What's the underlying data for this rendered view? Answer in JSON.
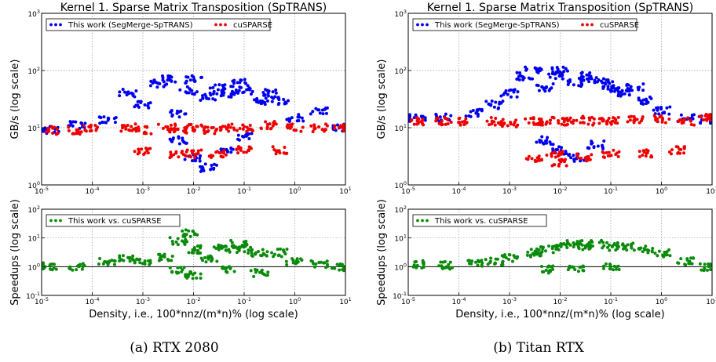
{
  "colors": {
    "segmerge": "#0000ee",
    "cusparse": "#ee0000",
    "speedup": "#0a8a0a",
    "grid": "#9a9a9a"
  },
  "chart_data": [
    {
      "type": "scatter",
      "panel": "top-left",
      "title": "Kernel 1. Sparse Matrix Transposition (SpTRANS)",
      "xlabel": "",
      "ylabel": "GB/s (log scale)",
      "xscale": "log",
      "yscale": "log",
      "xlim": [
        1e-05,
        10
      ],
      "ylim": [
        1,
        1000
      ],
      "xticks": [
        "10-5",
        "10-4",
        "10-3",
        "10-2",
        "10-1",
        "100",
        "101"
      ],
      "yticks": [
        "100",
        "101",
        "102",
        "103"
      ],
      "grid": true,
      "legend": "top",
      "series": [
        {
          "name": "This work (SegMerge-SpTRANS)",
          "color": "#0000ee",
          "points": [
            [
              1.5e-05,
              9
            ],
            [
              5e-05,
              11
            ],
            [
              0.0002,
              14
            ],
            [
              0.0005,
              40
            ],
            [
              0.001,
              25
            ],
            [
              0.002,
              60
            ],
            [
              0.003,
              70
            ],
            [
              0.005,
              18
            ],
            [
              0.008,
              45
            ],
            [
              0.01,
              70
            ],
            [
              0.02,
              35
            ],
            [
              0.03,
              50
            ],
            [
              0.05,
              40
            ],
            [
              0.08,
              60
            ],
            [
              0.1,
              45
            ],
            [
              0.2,
              30
            ],
            [
              0.3,
              40
            ],
            [
              0.5,
              30
            ],
            [
              1,
              15
            ],
            [
              3,
              20
            ],
            [
              0.005,
              6
            ],
            [
              0.01,
              3
            ],
            [
              0.02,
              2
            ],
            [
              0.05,
              4
            ],
            [
              0.1,
              7
            ],
            [
              8,
              10
            ]
          ]
        },
        {
          "name": "cuSPARSE",
          "color": "#ee0000",
          "points": [
            [
              1.5e-05,
              9
            ],
            [
              5e-05,
              9
            ],
            [
              0.0001,
              10
            ],
            [
              0.0005,
              10
            ],
            [
              0.001,
              9
            ],
            [
              0.003,
              10
            ],
            [
              0.005,
              9
            ],
            [
              0.01,
              10
            ],
            [
              0.02,
              9
            ],
            [
              0.05,
              10
            ],
            [
              0.1,
              10
            ],
            [
              0.3,
              11
            ],
            [
              1,
              10
            ],
            [
              3,
              10
            ],
            [
              8,
              10
            ],
            [
              0.001,
              4
            ],
            [
              0.005,
              3.5
            ],
            [
              0.01,
              3.5
            ],
            [
              0.03,
              3.5
            ],
            [
              0.1,
              4
            ],
            [
              0.5,
              4
            ]
          ]
        }
      ]
    },
    {
      "type": "scatter",
      "panel": "bottom-left",
      "title": "",
      "xlabel": "Density, i.e., 100*nnz/(m*n)% (log scale)",
      "ylabel": "Speedups (log scale)",
      "xscale": "log",
      "yscale": "log",
      "xlim": [
        1e-05,
        10
      ],
      "ylim": [
        0.1,
        100
      ],
      "xticks": [
        "10-5",
        "10-4",
        "10-3",
        "10-2",
        "10-1",
        "100",
        "101"
      ],
      "yticks": [
        "10-1",
        "100",
        "101",
        "102"
      ],
      "grid": true,
      "legend": "top-left",
      "reference_line": 1,
      "series": [
        {
          "name": "This work vs. cuSPARSE",
          "color": "#0a8a0a",
          "points": [
            [
              1.5e-05,
              1
            ],
            [
              5e-05,
              1
            ],
            [
              0.0002,
              1.5
            ],
            [
              0.0005,
              2
            ],
            [
              0.001,
              1.5
            ],
            [
              0.003,
              2
            ],
            [
              0.005,
              8
            ],
            [
              0.008,
              15
            ],
            [
              0.01,
              4
            ],
            [
              0.02,
              2
            ],
            [
              0.03,
              5
            ],
            [
              0.05,
              4
            ],
            [
              0.08,
              6
            ],
            [
              0.1,
              4
            ],
            [
              0.2,
              3
            ],
            [
              0.5,
              3
            ],
            [
              1,
              1.5
            ],
            [
              3,
              1.2
            ],
            [
              8,
              1
            ],
            [
              0.005,
              0.7
            ],
            [
              0.01,
              0.5
            ],
            [
              0.05,
              0.8
            ],
            [
              0.2,
              0.6
            ]
          ]
        }
      ]
    },
    {
      "type": "scatter",
      "panel": "top-right",
      "title": "Kernel 1. Sparse Matrix Transposition (SpTRANS)",
      "xlabel": "",
      "ylabel": "GB/s (log scale)",
      "xscale": "log",
      "yscale": "log",
      "xlim": [
        1e-05,
        10
      ],
      "ylim": [
        1,
        1000
      ],
      "xticks": [
        "10-5",
        "10-4",
        "10-3",
        "10-2",
        "10-1",
        "100",
        "101"
      ],
      "yticks": [
        "100",
        "101",
        "102",
        "103"
      ],
      "grid": true,
      "legend": "top",
      "series": [
        {
          "name": "This work (SegMerge-SpTRANS)",
          "color": "#0000ee",
          "points": [
            [
              1.5e-05,
              15
            ],
            [
              5e-05,
              15
            ],
            [
              0.0002,
              18
            ],
            [
              0.0005,
              25
            ],
            [
              0.001,
              40
            ],
            [
              0.002,
              80
            ],
            [
              0.003,
              100
            ],
            [
              0.005,
              50
            ],
            [
              0.008,
              80
            ],
            [
              0.01,
              100
            ],
            [
              0.02,
              60
            ],
            [
              0.03,
              80
            ],
            [
              0.05,
              70
            ],
            [
              0.08,
              60
            ],
            [
              0.1,
              50
            ],
            [
              0.2,
              40
            ],
            [
              0.3,
              50
            ],
            [
              0.5,
              30
            ],
            [
              1,
              20
            ],
            [
              3,
              15
            ],
            [
              0.005,
              6
            ],
            [
              0.01,
              4
            ],
            [
              0.02,
              3
            ],
            [
              0.05,
              5
            ],
            [
              8,
              14
            ]
          ]
        },
        {
          "name": "cuSPARSE",
          "color": "#ee0000",
          "points": [
            [
              1.5e-05,
              13
            ],
            [
              5e-05,
              13
            ],
            [
              0.0001,
              13
            ],
            [
              0.0005,
              13
            ],
            [
              0.001,
              12
            ],
            [
              0.003,
              13
            ],
            [
              0.005,
              13
            ],
            [
              0.01,
              13
            ],
            [
              0.02,
              14
            ],
            [
              0.05,
              13
            ],
            [
              0.1,
              13
            ],
            [
              0.3,
              14
            ],
            [
              1,
              14
            ],
            [
              3,
              13
            ],
            [
              8,
              15
            ],
            [
              0.003,
              3
            ],
            [
              0.008,
              3.5
            ],
            [
              0.01,
              2.5
            ],
            [
              0.03,
              3
            ],
            [
              0.1,
              3.5
            ],
            [
              0.5,
              3.5
            ],
            [
              2,
              4
            ]
          ]
        }
      ]
    },
    {
      "type": "scatter",
      "panel": "bottom-right",
      "title": "",
      "xlabel": "Density, i.e., 100*nnz/(m*n)% (log scale)",
      "ylabel": "Speedups (log scale)",
      "xscale": "log",
      "yscale": "log",
      "xlim": [
        1e-05,
        10
      ],
      "ylim": [
        0.1,
        100
      ],
      "xticks": [
        "10-5",
        "10-4",
        "10-3",
        "10-2",
        "10-1",
        "100",
        "101"
      ],
      "yticks": [
        "10-1",
        "100",
        "101",
        "102"
      ],
      "grid": true,
      "legend": "top-left",
      "reference_line": 1,
      "series": [
        {
          "name": "This work vs. cuSPARSE",
          "color": "#0a8a0a",
          "points": [
            [
              1.5e-05,
              1.2
            ],
            [
              5e-05,
              1.1
            ],
            [
              0.0002,
              1.3
            ],
            [
              0.0005,
              1.5
            ],
            [
              0.001,
              2
            ],
            [
              0.003,
              3
            ],
            [
              0.005,
              4
            ],
            [
              0.01,
              5
            ],
            [
              0.02,
              6
            ],
            [
              0.03,
              5
            ],
            [
              0.05,
              6
            ],
            [
              0.1,
              5
            ],
            [
              0.2,
              5
            ],
            [
              0.5,
              4
            ],
            [
              1,
              3
            ],
            [
              3,
              1.5
            ],
            [
              8,
              1
            ],
            [
              0.005,
              0.8
            ],
            [
              0.02,
              0.9
            ],
            [
              0.1,
              1
            ]
          ]
        }
      ]
    }
  ],
  "captions": [
    "(a) RTX 2080",
    "(b) Titan RTX"
  ]
}
